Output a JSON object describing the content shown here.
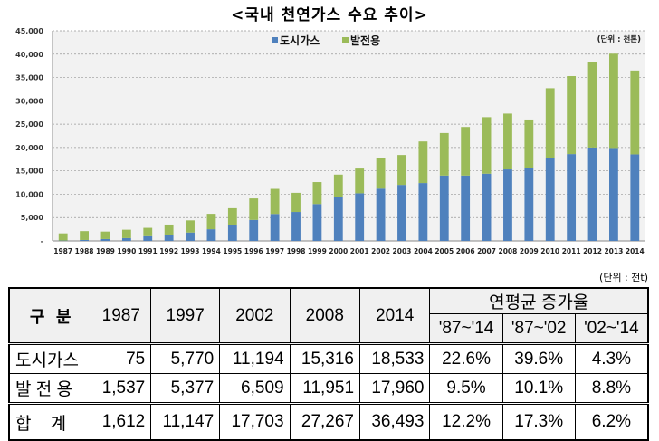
{
  "title": "<국내 천연가스 수요 추이>",
  "chart_data": {
    "type": "bar",
    "stacked": true,
    "title": "<국내 천연가스 수요 추이>",
    "unit_label": "(단위 : 천톤)",
    "categories": [
      "1987",
      "1988",
      "1989",
      "1990",
      "1991",
      "1992",
      "1993",
      "1994",
      "1995",
      "1996",
      "1997",
      "1998",
      "1999",
      "2000",
      "2001",
      "2002",
      "2003",
      "2004",
      "2005",
      "2006",
      "2007",
      "2008",
      "2009",
      "2010",
      "2011",
      "2012",
      "2013",
      "2014"
    ],
    "series": [
      {
        "name": "도시가스",
        "color": "#4f81bd",
        "values": [
          75,
          200,
          400,
          600,
          1000,
          1300,
          1800,
          2500,
          3400,
          4500,
          5770,
          6200,
          7900,
          9500,
          10200,
          11194,
          12000,
          12400,
          14000,
          14000,
          14400,
          15316,
          15600,
          17700,
          18600,
          20000,
          19900,
          18533
        ]
      },
      {
        "name": "발전용",
        "color": "#9bbb59",
        "values": [
          1537,
          1900,
          1600,
          1800,
          1800,
          2200,
          2600,
          3300,
          3600,
          4600,
          5377,
          4100,
          4700,
          4700,
          5300,
          6509,
          6400,
          8900,
          9100,
          10400,
          12100,
          11951,
          10400,
          15000,
          16700,
          18300,
          20200,
          17960
        ]
      }
    ],
    "ylim": [
      0,
      45000
    ],
    "yticks": [
      "-",
      "5,000",
      "10,000",
      "15,000",
      "20,000",
      "25,000",
      "30,000",
      "35,000",
      "40,000",
      "45,000"
    ],
    "grid": true,
    "legend": "top-center"
  },
  "table": {
    "unit": "(단위 : 천t)",
    "header_label": "구  분",
    "years": [
      "1987",
      "1997",
      "2002",
      "2008",
      "2014"
    ],
    "growth_header": "연평균 증가율",
    "growth_periods": [
      "'87~'14",
      "'87~'02",
      "'02~'14"
    ],
    "rows": [
      {
        "label": "도시가스",
        "values": [
          "75",
          "5,770",
          "11,194",
          "15,316",
          "18,533"
        ],
        "growth": [
          "22.6%",
          "39.6%",
          "4.3%"
        ]
      },
      {
        "label": "발 전 용",
        "values": [
          "1,537",
          "5,377",
          "6,509",
          "11,951",
          "17,960"
        ],
        "growth": [
          "9.5%",
          "10.1%",
          "8.8%"
        ]
      },
      {
        "label": "합    계",
        "values": [
          "1,612",
          "11,147",
          "17,703",
          "27,267",
          "36,493"
        ],
        "growth": [
          "12.2%",
          "17.3%",
          "6.2%"
        ]
      }
    ]
  }
}
